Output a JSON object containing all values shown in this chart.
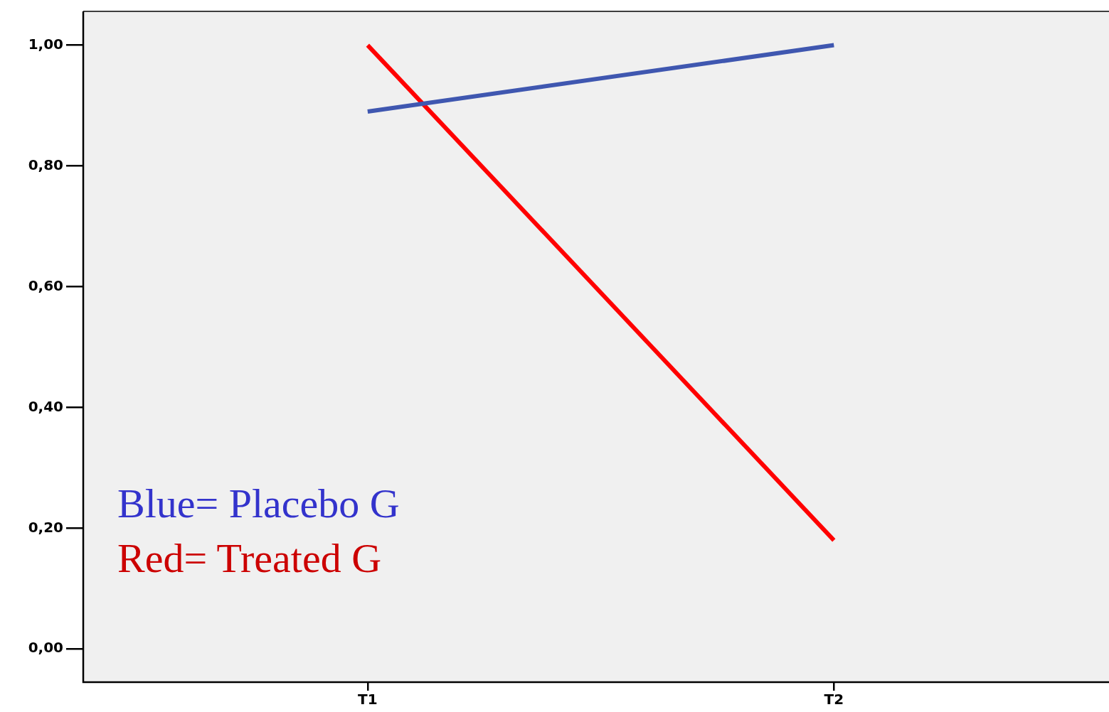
{
  "chart_data": {
    "type": "line",
    "categories": [
      "T1",
      "T2"
    ],
    "series": [
      {
        "color": "#3f57b0",
        "values": [
          0.89,
          1.0
        ]
      },
      {
        "color": "#ff0000",
        "values": [
          1.0,
          0.18
        ]
      }
    ],
    "ylim": [
      -0.055,
      1.056
    ],
    "yticks": [
      {
        "value": 0,
        "label": "0,00"
      },
      {
        "value": 0.2,
        "label": "0,20"
      },
      {
        "value": 0.4,
        "label": "0,40"
      },
      {
        "value": 0.6,
        "label": "0,60"
      },
      {
        "value": 0.8,
        "label": "0,80"
      },
      {
        "value": 1,
        "label": "1,00"
      }
    ],
    "annotations": [
      "Blue= Placebo G",
      "Red= Treated G"
    ],
    "grid": false,
    "legend": false,
    "marker": "none",
    "line_style": "solid"
  }
}
